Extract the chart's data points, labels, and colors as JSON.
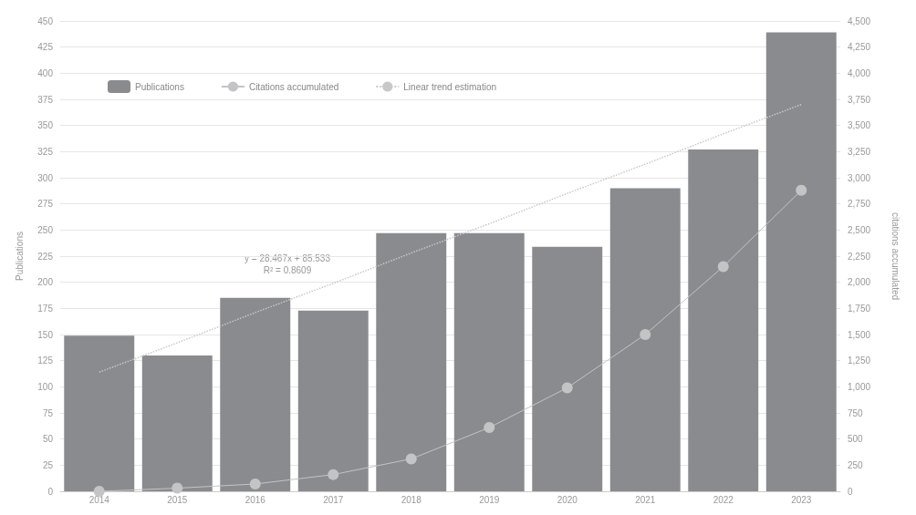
{
  "chart_data": {
    "type": "bar",
    "ylabel": "Publications",
    "y2label": "citations accumulated",
    "categories": [
      "2014",
      "2015",
      "2016",
      "2017",
      "2018",
      "2019",
      "2020",
      "2021",
      "2022",
      "2023"
    ],
    "series": [
      {
        "name": "Publications",
        "color": "#8a8b8f",
        "values": [
          149,
          130,
          185,
          173,
          247,
          247,
          234,
          290,
          327,
          439
        ]
      },
      {
        "name": "Citations accumulated",
        "type": "line",
        "axis": "y2",
        "marker": "circle",
        "color": "#c4c4c6",
        "values": [
          0,
          30,
          70,
          160,
          310,
          610,
          990,
          1500,
          2150,
          2880
        ]
      },
      {
        "name": "Linear trend estimation",
        "type": "line",
        "marker": "none",
        "line_style": "dotted",
        "color": "#c8c8c8",
        "values": [
          114,
          142,
          171,
          199,
          228,
          256,
          285,
          313,
          342,
          370
        ]
      }
    ],
    "ylim": [
      0,
      450
    ],
    "yticks": [
      0,
      25,
      50,
      75,
      100,
      125,
      150,
      175,
      200,
      225,
      250,
      275,
      300,
      325,
      350,
      375,
      400,
      425,
      450
    ],
    "y2lim": [
      0,
      4500
    ],
    "y2ticks": [
      0,
      250,
      500,
      750,
      {
        "value": 1000,
        "label": "1,000"
      },
      {
        "value": 1250,
        "label": "1,250"
      },
      {
        "value": 1500,
        "label": "1,500"
      },
      {
        "value": 1750,
        "label": "1,750"
      },
      {
        "value": 2000,
        "label": "2,000"
      },
      {
        "value": 2250,
        "label": "2,250"
      },
      {
        "value": 2500,
        "label": "2,500"
      },
      {
        "value": 2750,
        "label": "2,750"
      },
      {
        "value": 3000,
        "label": "3,000"
      },
      {
        "value": 3250,
        "label": "3,250"
      },
      {
        "value": 3500,
        "label": "3,500"
      },
      {
        "value": 3750,
        "label": "3,750"
      },
      {
        "value": 4000,
        "label": "4,000"
      },
      {
        "value": 4250,
        "label": "4,250"
      },
      {
        "value": 4500,
        "label": "4,500"
      }
    ],
    "grid": "y",
    "legend": "top left",
    "annotations": [
      "y = 28.467x + 85.533",
      "R² = 0.8609"
    ]
  }
}
